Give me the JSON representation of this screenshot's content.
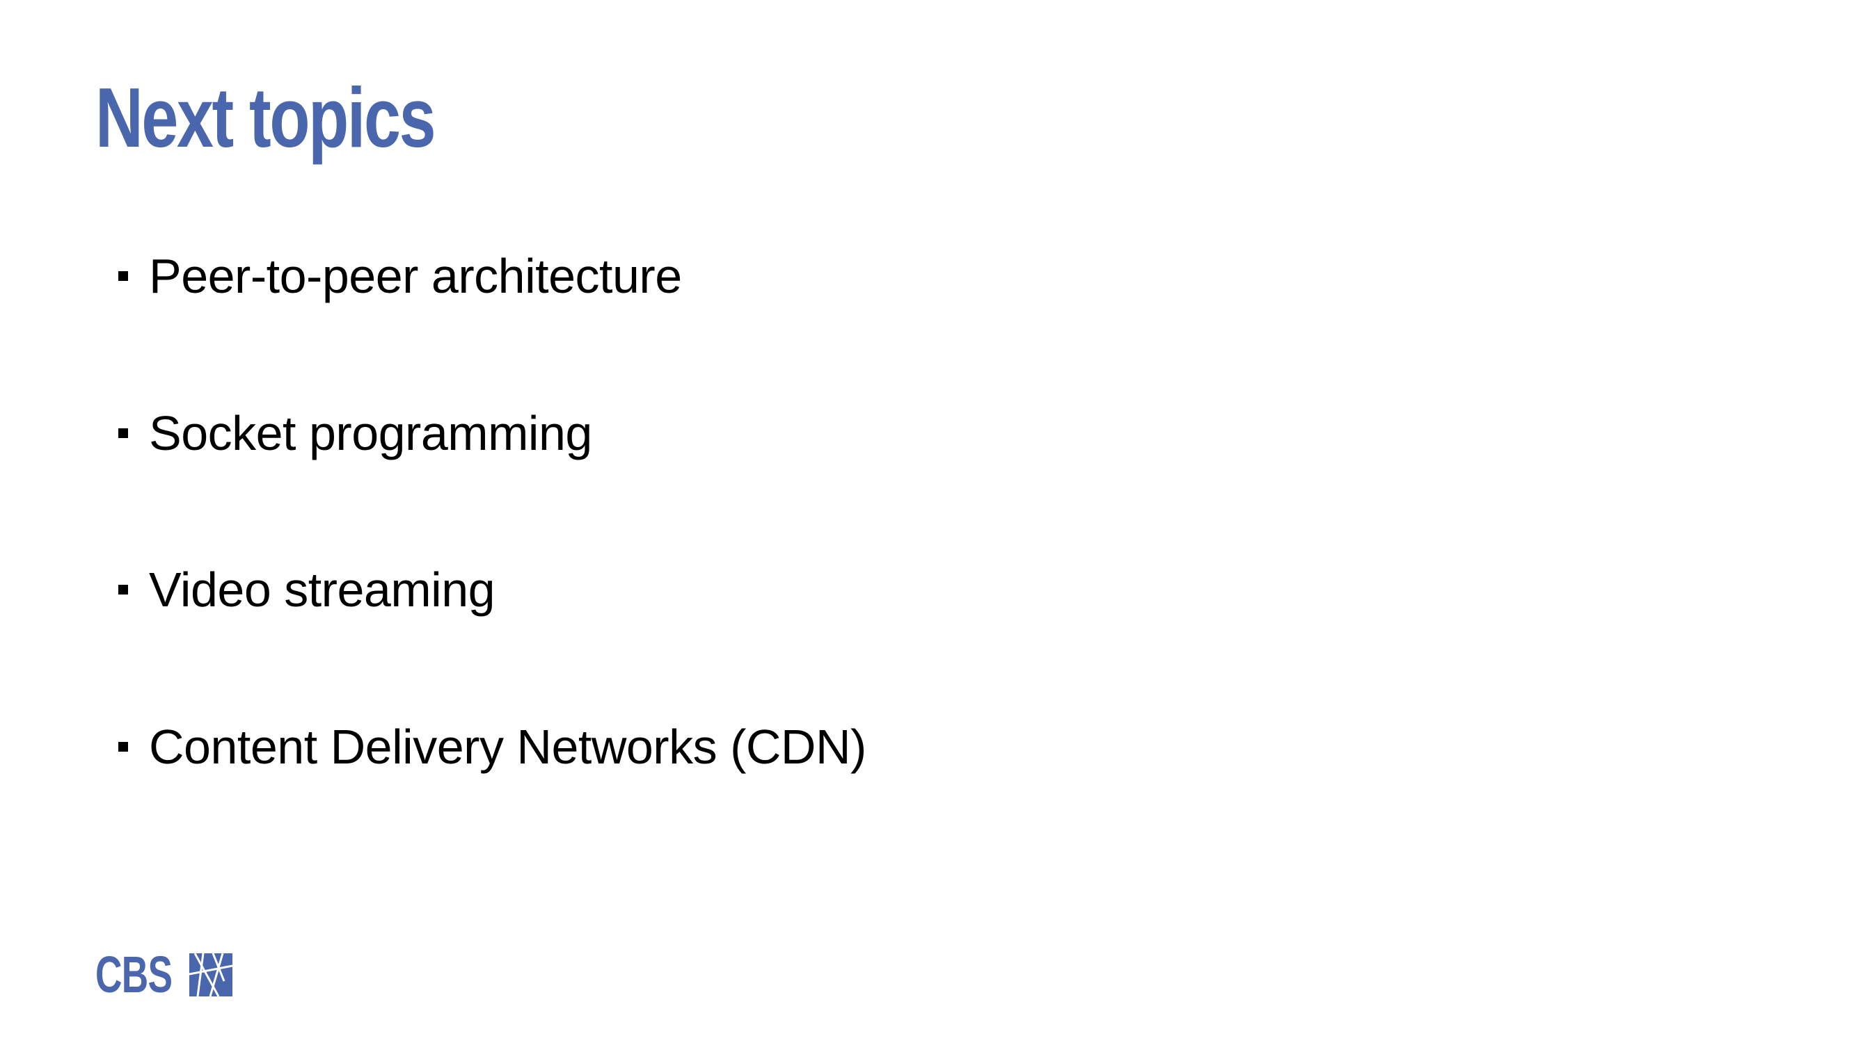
{
  "slide": {
    "title": "Next topics",
    "bullets": [
      "Peer-to-peer architecture",
      "Socket programming",
      "Video streaming",
      "Content Delivery Networks (CDN)"
    ]
  },
  "logo": {
    "text": "CBS",
    "mark_icon": "cbs-logo-mark-icon"
  },
  "colors": {
    "accent": "#4a66ac",
    "text": "#000000",
    "background": "#ffffff"
  }
}
